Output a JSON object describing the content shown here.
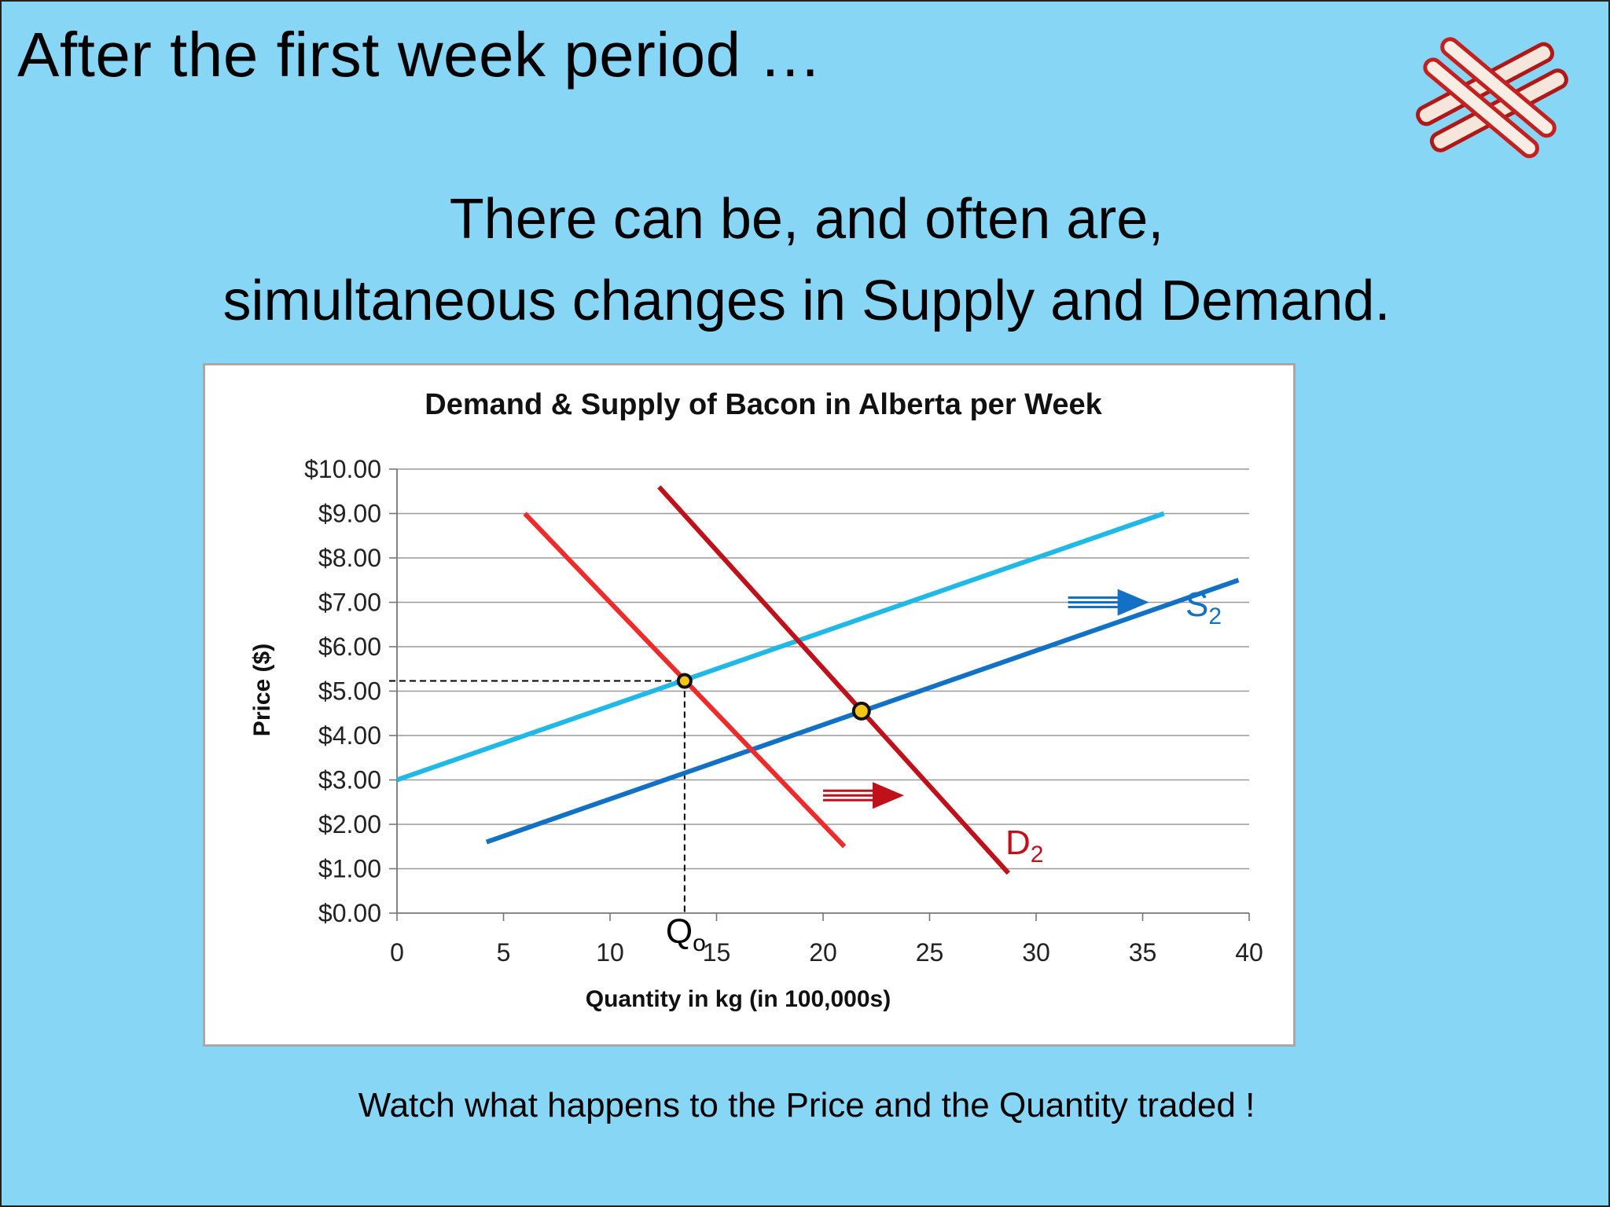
{
  "slide": {
    "title": "After the first week period …",
    "subtitle_line1": "There can be, and often are,",
    "subtitle_line2": "simultaneous changes in Supply and Demand.",
    "footer": "Watch what happens to the Price and the Quantity traded !"
  },
  "logo": {
    "icon": "bacon-strips-icon"
  },
  "colors": {
    "background": "#87d6f6",
    "supply_initial": "#20b8e6",
    "supply_new": "#1271c4",
    "demand_initial": "#ee2a2a",
    "demand_new": "#c0111a",
    "equilibrium_fill": "#f5c518"
  },
  "chart_data": {
    "type": "line",
    "title": "Demand & Supply of Bacon in Alberta per Week",
    "xlabel": "Quantity in kg (in 100,000s)",
    "ylabel": "Price ($)",
    "xlim": [
      0,
      40
    ],
    "ylim": [
      0,
      10
    ],
    "x_ticks": [
      0,
      5,
      10,
      15,
      20,
      25,
      30,
      35,
      40
    ],
    "y_ticks": [
      0,
      1,
      2,
      3,
      4,
      5,
      6,
      7,
      8,
      9,
      10
    ],
    "y_tick_labels": [
      "$0.00",
      "$1.00",
      "$2.00",
      "$3.00",
      "$4.00",
      "$5.00",
      "$6.00",
      "$7.00",
      "$8.00",
      "$9.00",
      "$10.00"
    ],
    "grid": "horizontal",
    "series": [
      {
        "role": "supply-initial",
        "x": [
          0,
          36
        ],
        "y": [
          3.0,
          9.0
        ]
      },
      {
        "role": "supply-new",
        "name_base": "S",
        "name_sub": "2",
        "x": [
          4.2,
          39.5
        ],
        "y": [
          1.6,
          7.5
        ]
      },
      {
        "role": "demand-initial",
        "x": [
          6,
          21
        ],
        "y": [
          9.0,
          1.5
        ]
      },
      {
        "role": "demand-new",
        "name_base": "D",
        "name_sub": "2",
        "x": [
          12.3,
          28.7
        ],
        "y": [
          9.6,
          0.9
        ]
      }
    ],
    "equilibria": [
      {
        "role": "initial",
        "x": 13.5,
        "y": 5.23
      },
      {
        "role": "new",
        "x": 21.8,
        "y": 4.55
      }
    ],
    "quantity_marker": {
      "base": "Q",
      "sub": "o",
      "x": 13.5
    },
    "shift_arrows": [
      {
        "role": "supply-shift",
        "x_from": 31.5,
        "x_to": 35.3,
        "y": 7.0
      },
      {
        "role": "demand-shift",
        "x_from": 20.0,
        "x_to": 23.8,
        "y": 2.65
      }
    ]
  }
}
